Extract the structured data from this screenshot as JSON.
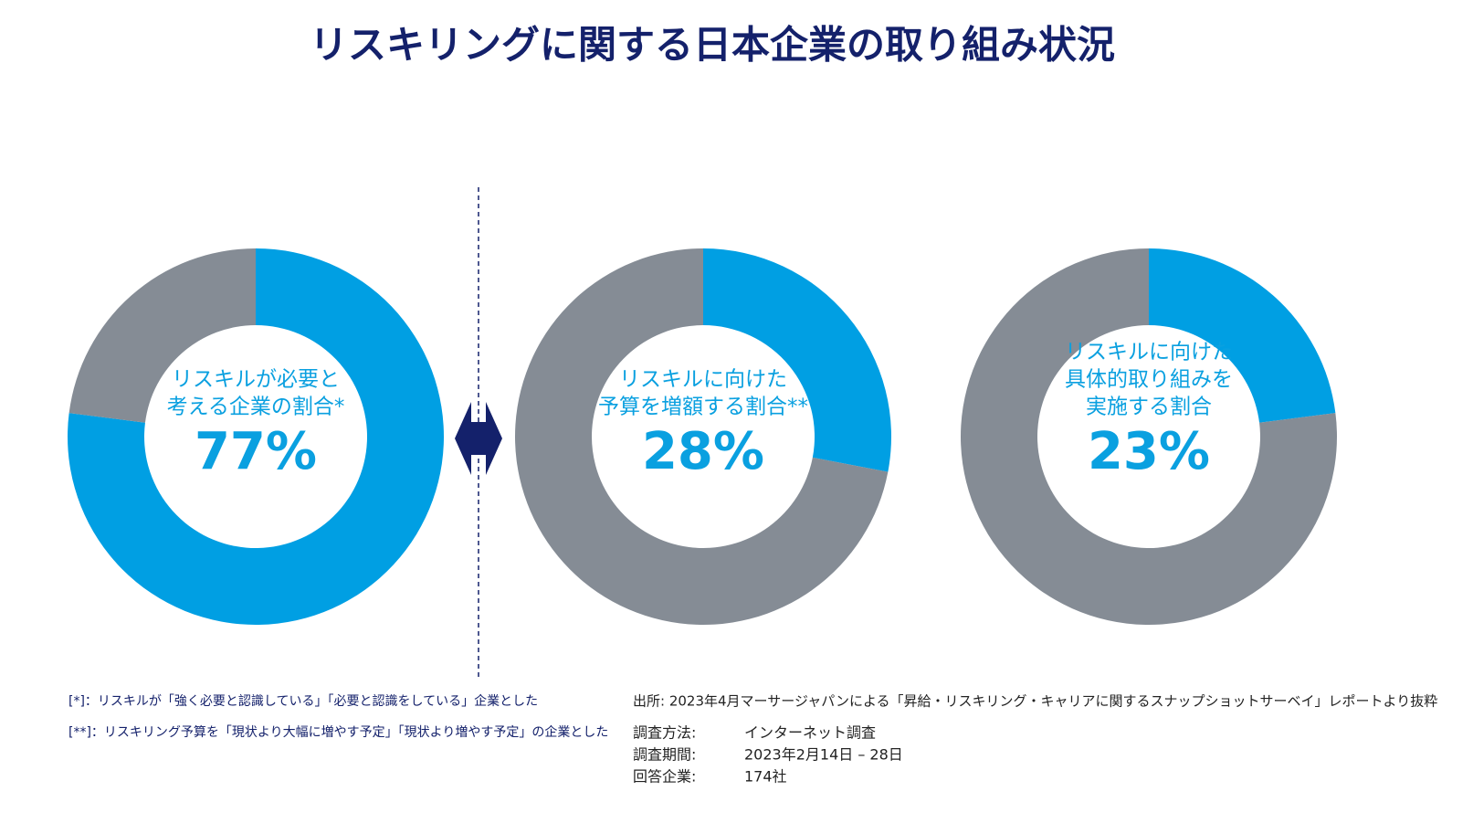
{
  "title": "リスキリングに関する日本企業の取り組み状況",
  "chart_data": [
    {
      "type": "donut",
      "label": [
        "リスキルが必要と",
        "考える企業の割合*"
      ],
      "values": [
        77,
        23
      ],
      "value_labels": [
        "77%",
        null
      ],
      "colors": [
        "#009fe3",
        "#858c95"
      ]
    },
    {
      "type": "donut",
      "label": [
        "リスキルに向けた",
        "予算を増額する割合**"
      ],
      "values": [
        28,
        72
      ],
      "value_labels": [
        "28%",
        null
      ],
      "colors": [
        "#009fe3",
        "#858c95"
      ]
    },
    {
      "type": "donut",
      "label": [
        "リスキルに向けた",
        "具体的取り組みを",
        "実施する割合"
      ],
      "values": [
        23,
        77
      ],
      "value_labels": [
        "23%",
        null
      ],
      "colors": [
        "#009fe3",
        "#858c95"
      ]
    }
  ],
  "notes": [
    "[*]：リスキルが「強く必要と認識している」「必要と認識をしている」企業とした",
    "[**]：リスキリング予算を「現状より大幅に増やす予定」「現状より増やす予定」の企業とした"
  ],
  "source": "出所: 2023年4月マーサージャパンによる「昇給・リスキリング・キャリアに関するスナップショットサーベイ」レポートより抜粋",
  "survey": [
    {
      "label": "調査方法:",
      "value": "インターネット調査"
    },
    {
      "label": "調査期間:",
      "value": "2023年2月14日 – 28日"
    },
    {
      "label": "回答企業:",
      "value": "174社"
    }
  ]
}
